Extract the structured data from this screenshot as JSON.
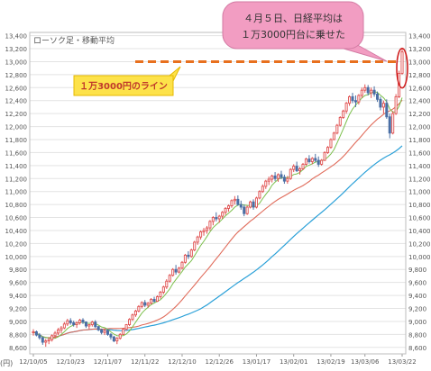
{
  "chart_data": {
    "type": "candlestick",
    "subtitle": "ローソク足・移動平均",
    "x_axis_unit": "(円)",
    "y_range": [
      8500,
      13450
    ],
    "y_ticks": [
      8600,
      8800,
      9000,
      9200,
      9400,
      9600,
      9800,
      10000,
      10200,
      10400,
      10600,
      10800,
      11000,
      11200,
      11400,
      11600,
      11800,
      12000,
      12200,
      12400,
      12600,
      12800,
      13000,
      13200,
      13400
    ],
    "y_tick_labels": [
      "8,600",
      "8,800",
      "9,000",
      "9,200",
      "9,400",
      "9,600",
      "9,800",
      "10,000",
      "10,200",
      "10,400",
      "10,600",
      "10,800",
      "11,000",
      "11,200",
      "11,400",
      "11,600",
      "11,800",
      "12,000",
      "12,200",
      "12,400",
      "12,600",
      "12,800",
      "13,000",
      "13,200",
      "13,400"
    ],
    "x_ticks": [
      0,
      12,
      24,
      36,
      48,
      60,
      72,
      84,
      96,
      108
    ],
    "x_tick_labels": [
      "12/10/05",
      "12/10/23",
      "12/11/07",
      "12/11/22",
      "12/12/10",
      "12/12/26",
      "13/01/17",
      "13/02/01",
      "13/02/19",
      "13/03/06",
      "13/03/22"
    ],
    "x_tick_positions": [
      0,
      12,
      24,
      36,
      48,
      60,
      72,
      84,
      96,
      107,
      119
    ],
    "grid": true,
    "reference_line": {
      "value": 13000,
      "label": "１万3000円のライン",
      "color": "#e8701e"
    },
    "annotation": {
      "text_line1": "４月５日、日経平均は",
      "text_line2": "１万3000円台に乗せた",
      "bg": "#f29dc2",
      "highlight": "#d02020"
    },
    "colors": {
      "up": "#e05050",
      "down": "#4a6fa5",
      "ma_short": "#7bbf4b",
      "ma_mid": "#e06b5a",
      "ma_long": "#2aa0d8",
      "axis_text": "#555555",
      "grid": "#e3e3e3"
    },
    "candles": [
      [
        8830,
        8880,
        8780,
        8840
      ],
      [
        8840,
        8860,
        8770,
        8790
      ],
      [
        8790,
        8820,
        8720,
        8750
      ],
      [
        8750,
        8770,
        8640,
        8680
      ],
      [
        8680,
        8730,
        8610,
        8700
      ],
      [
        8700,
        8760,
        8650,
        8720
      ],
      [
        8720,
        8800,
        8690,
        8780
      ],
      [
        8780,
        8850,
        8740,
        8820
      ],
      [
        8820,
        8900,
        8790,
        8870
      ],
      [
        8870,
        8930,
        8820,
        8900
      ],
      [
        8900,
        8990,
        8880,
        8960
      ],
      [
        8960,
        9040,
        8930,
        9010
      ],
      [
        9010,
        9050,
        8950,
        8980
      ],
      [
        8980,
        9010,
        8920,
        8950
      ],
      [
        8950,
        9000,
        8900,
        8980
      ],
      [
        8980,
        9040,
        8950,
        9020
      ],
      [
        9020,
        9050,
        8960,
        8990
      ],
      [
        8990,
        9000,
        8900,
        8930
      ],
      [
        8930,
        8960,
        8880,
        8950
      ],
      [
        8950,
        9010,
        8920,
        8990
      ],
      [
        8990,
        9020,
        8900,
        8920
      ],
      [
        8920,
        8930,
        8850,
        8870
      ],
      [
        8870,
        8890,
        8800,
        8830
      ],
      [
        8830,
        8880,
        8790,
        8860
      ],
      [
        8860,
        8880,
        8780,
        8800
      ],
      [
        8800,
        8820,
        8720,
        8760
      ],
      [
        8760,
        8780,
        8680,
        8700
      ],
      [
        8700,
        8760,
        8650,
        8740
      ],
      [
        8740,
        8820,
        8720,
        8800
      ],
      [
        8800,
        8900,
        8790,
        8880
      ],
      [
        8880,
        8960,
        8860,
        8950
      ],
      [
        8950,
        9050,
        8930,
        9030
      ],
      [
        9030,
        9120,
        9010,
        9100
      ],
      [
        9100,
        9180,
        9070,
        9160
      ],
      [
        9160,
        9250,
        9140,
        9230
      ],
      [
        9230,
        9310,
        9200,
        9290
      ],
      [
        9290,
        9330,
        9220,
        9250
      ],
      [
        9250,
        9300,
        9210,
        9280
      ],
      [
        9280,
        9360,
        9260,
        9340
      ],
      [
        9340,
        9380,
        9290,
        9310
      ],
      [
        9310,
        9400,
        9300,
        9380
      ],
      [
        9380,
        9470,
        9350,
        9450
      ],
      [
        9450,
        9550,
        9420,
        9530
      ],
      [
        9530,
        9650,
        9500,
        9620
      ],
      [
        9620,
        9730,
        9600,
        9710
      ],
      [
        9710,
        9820,
        9690,
        9800
      ],
      [
        9800,
        9870,
        9720,
        9760
      ],
      [
        9760,
        9840,
        9740,
        9820
      ],
      [
        9820,
        9930,
        9800,
        9910
      ],
      [
        9910,
        10040,
        9890,
        10020
      ],
      [
        10020,
        10080,
        9960,
        10000
      ],
      [
        10000,
        10120,
        9980,
        10100
      ],
      [
        10100,
        10240,
        10080,
        10220
      ],
      [
        10220,
        10320,
        10180,
        10300
      ],
      [
        10300,
        10400,
        10260,
        10380
      ],
      [
        10380,
        10440,
        10320,
        10400
      ],
      [
        10400,
        10470,
        10350,
        10440
      ],
      [
        10440,
        10560,
        10400,
        10540
      ],
      [
        10540,
        10620,
        10480,
        10600
      ],
      [
        10600,
        10680,
        10540,
        10580
      ],
      [
        10580,
        10640,
        10520,
        10620
      ],
      [
        10620,
        10700,
        10580,
        10680
      ],
      [
        10680,
        10760,
        10640,
        10740
      ],
      [
        10740,
        10800,
        10690,
        10780
      ],
      [
        10780,
        10880,
        10750,
        10860
      ],
      [
        10860,
        10930,
        10800,
        10880
      ],
      [
        10880,
        10940,
        10780,
        10800
      ],
      [
        10800,
        10860,
        10720,
        10760
      ],
      [
        10760,
        10800,
        10620,
        10660
      ],
      [
        10660,
        10780,
        10640,
        10760
      ],
      [
        10760,
        10860,
        10740,
        10840
      ],
      [
        10840,
        10880,
        10720,
        10760
      ],
      [
        10760,
        10920,
        10740,
        10900
      ],
      [
        10900,
        11020,
        10880,
        11000
      ],
      [
        11000,
        11110,
        10980,
        11080
      ],
      [
        11080,
        11180,
        11040,
        11160
      ],
      [
        11160,
        11230,
        11100,
        11190
      ],
      [
        11190,
        11260,
        11140,
        11240
      ],
      [
        11240,
        11300,
        11160,
        11200
      ],
      [
        11200,
        11280,
        11150,
        11260
      ],
      [
        11260,
        11320,
        11190,
        11220
      ],
      [
        11220,
        11260,
        11120,
        11160
      ],
      [
        11160,
        11240,
        11120,
        11200
      ],
      [
        11200,
        11360,
        11180,
        11340
      ],
      [
        11340,
        11420,
        11300,
        11390
      ],
      [
        11390,
        11460,
        11300,
        11320
      ],
      [
        11320,
        11380,
        11260,
        11350
      ],
      [
        11350,
        11440,
        11330,
        11420
      ],
      [
        11420,
        11520,
        11400,
        11500
      ],
      [
        11500,
        11560,
        11430,
        11460
      ],
      [
        11460,
        11530,
        11420,
        11510
      ],
      [
        11510,
        11580,
        11450,
        11480
      ],
      [
        11480,
        11540,
        11380,
        11420
      ],
      [
        11420,
        11500,
        11400,
        11480
      ],
      [
        11480,
        11620,
        11470,
        11600
      ],
      [
        11600,
        11700,
        11580,
        11680
      ],
      [
        11680,
        11820,
        11660,
        11800
      ],
      [
        11800,
        11920,
        11790,
        11900
      ],
      [
        11900,
        12040,
        11880,
        12020
      ],
      [
        12020,
        12160,
        12000,
        12140
      ],
      [
        12140,
        12260,
        12120,
        12240
      ],
      [
        12240,
        12380,
        12200,
        12360
      ],
      [
        12360,
        12480,
        12320,
        12460
      ],
      [
        12460,
        12520,
        12360,
        12400
      ],
      [
        12400,
        12480,
        12300,
        12380
      ],
      [
        12380,
        12500,
        12340,
        12480
      ],
      [
        12480,
        12600,
        12440,
        12560
      ],
      [
        12560,
        12650,
        12520,
        12600
      ],
      [
        12600,
        12640,
        12480,
        12520
      ],
      [
        12520,
        12600,
        12440,
        12560
      ],
      [
        12560,
        12620,
        12460,
        12500
      ],
      [
        12500,
        12540,
        12380,
        12420
      ],
      [
        12420,
        12460,
        12250,
        12300
      ],
      [
        12300,
        12400,
        12200,
        12360
      ],
      [
        12360,
        12420,
        12120,
        12150
      ],
      [
        12150,
        12200,
        11820,
        11900
      ],
      [
        11900,
        12240,
        11880,
        12200
      ],
      [
        12200,
        12500,
        12180,
        12460
      ],
      [
        12460,
        12860,
        12440,
        12820
      ],
      [
        12820,
        13200,
        12800,
        13150
      ]
    ]
  }
}
